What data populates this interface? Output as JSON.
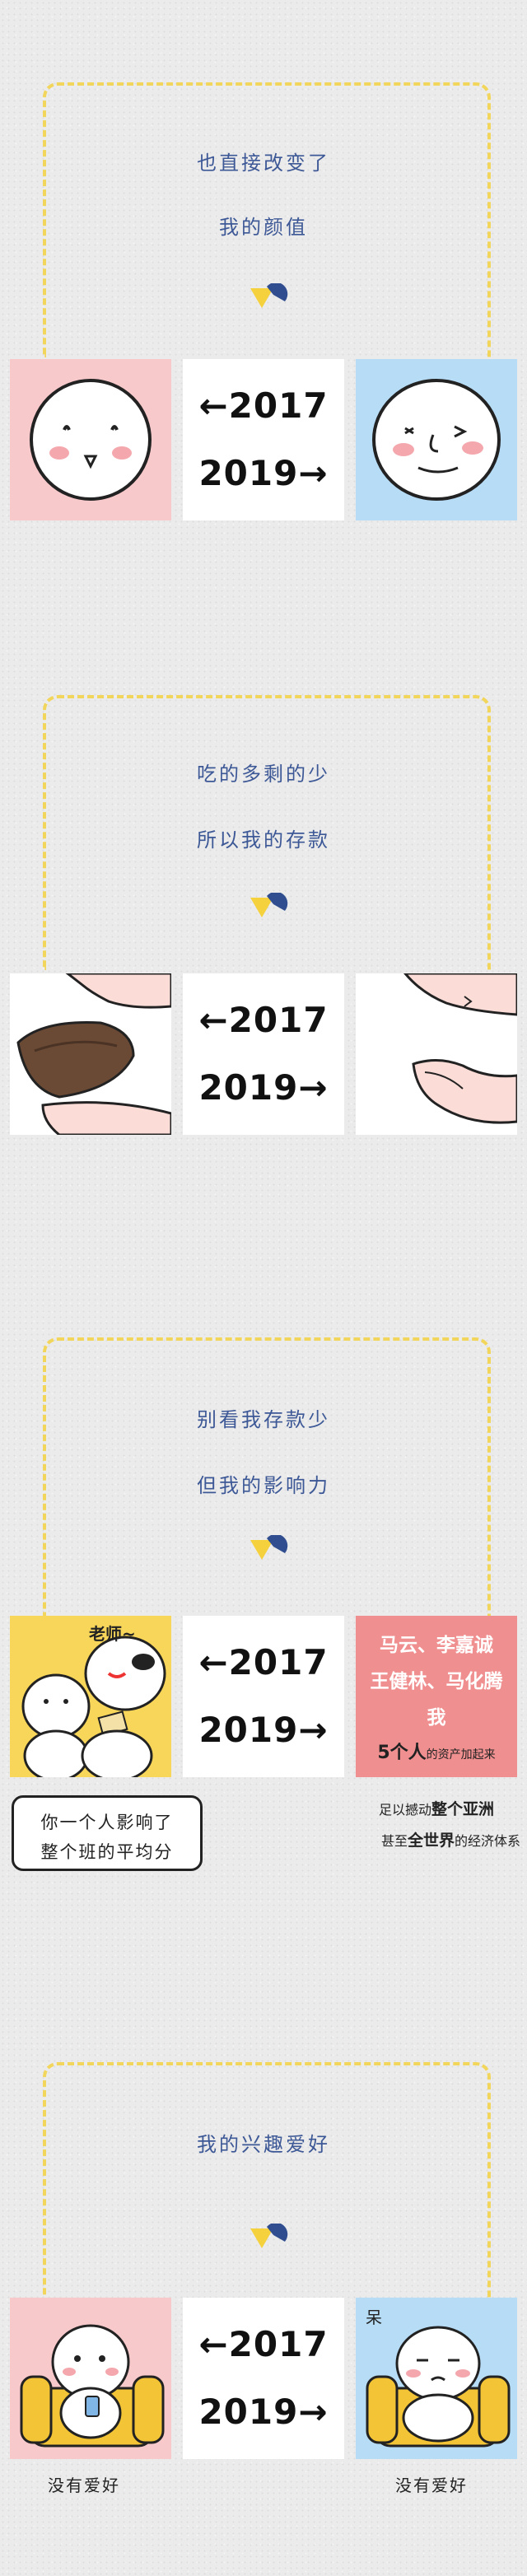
{
  "sections": [
    {
      "caption_1": "也直接改变了",
      "caption_2": "我的颜值",
      "year_left": "←2017",
      "year_right": "2019→"
    },
    {
      "caption_1": "吃的多剩的少",
      "caption_2": "所以我的存款",
      "year_left": "←2017",
      "year_right": "2019→"
    },
    {
      "caption_1": "别看我存款少",
      "caption_2": "但我的影响力",
      "year_left": "←2017",
      "year_right": "2019→",
      "teacher_label": "老师~",
      "bubble_line_1": "你一个人影响了",
      "bubble_line_2": "整个班的平均分",
      "names_line_1": "马云、李嘉诚",
      "names_line_2": "王健林、马化腾",
      "names_line_3": "我",
      "assets_bold": "5个人",
      "assets_rest": "的资产加起来",
      "note_1_pre": "足以撼动",
      "note_1_bold": "整个亚洲",
      "note_2_pre": "甚至",
      "note_2_bold": "全世界",
      "note_2_post": "的经济体系"
    },
    {
      "caption_1": "我的兴趣爱好",
      "year_left": "←2017",
      "year_right": "2019→",
      "dazed_label": "呆",
      "label_left": "没有爱好",
      "label_right": "没有爱好"
    }
  ],
  "colors": {
    "caption": "#3d5896",
    "dash": "#f2d65c",
    "pink": "#f7c9cb",
    "blue": "#b7dcf6",
    "yellow": "#f8d65a",
    "red": "#f08f90"
  },
  "icons": [
    "down-arrow-mark",
    "face-2017",
    "face-2019",
    "wallet-hand",
    "empty-hand",
    "teacher-comic",
    "sofa-character",
    "sofa-character-dazed"
  ]
}
